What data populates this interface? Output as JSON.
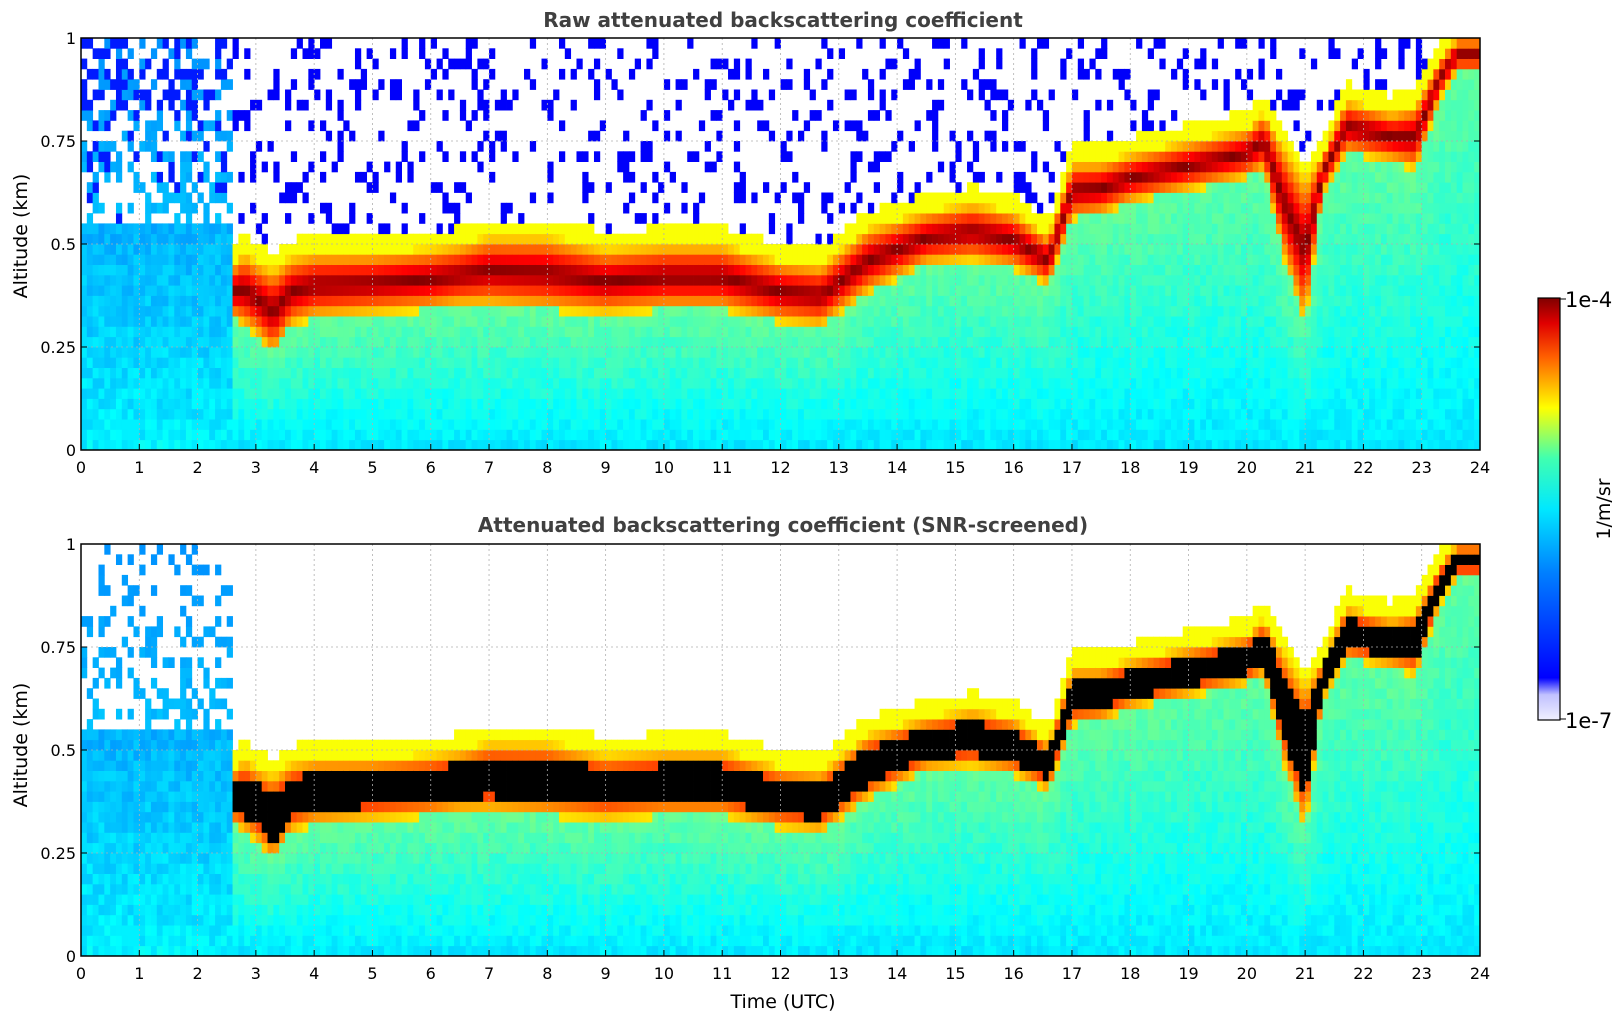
{
  "chart_data": [
    {
      "type": "heatmap",
      "title": "Raw attenuated backscattering coefficient",
      "xlabel": "",
      "ylabel": "Altitude (km)",
      "xlim": [
        0,
        24
      ],
      "ylim": [
        0,
        1
      ],
      "x_ticks": [
        "0",
        "1",
        "2",
        "3",
        "4",
        "5",
        "6",
        "7",
        "8",
        "9",
        "10",
        "11",
        "12",
        "13",
        "14",
        "15",
        "16",
        "17",
        "18",
        "19",
        "20",
        "21",
        "22",
        "23",
        "24"
      ],
      "y_ticks": [
        "0",
        "0.25",
        "0.5",
        "0.75",
        "1"
      ],
      "grid": true,
      "screened": false,
      "layer_top_km": {
        "time_utc": [
          2.6,
          2.8,
          3.0,
          3.3,
          3.6,
          4.0,
          5.0,
          6.0,
          6.5,
          7.0,
          8.0,
          9.0,
          10.0,
          11.0,
          12.0,
          12.7,
          13.5,
          14.5,
          15.3,
          16.0,
          16.6,
          17.0,
          17.5,
          18.0,
          19.0,
          20.0,
          20.3,
          20.6,
          21.0,
          21.3,
          21.7,
          22.5,
          22.9,
          23.3,
          23.6
        ],
        "altitude_km": [
          0.45,
          0.48,
          0.46,
          0.44,
          0.47,
          0.48,
          0.48,
          0.49,
          0.5,
          0.52,
          0.52,
          0.49,
          0.5,
          0.5,
          0.46,
          0.45,
          0.54,
          0.58,
          0.6,
          0.58,
          0.52,
          0.7,
          0.7,
          0.72,
          0.75,
          0.78,
          0.82,
          0.75,
          0.66,
          0.72,
          0.85,
          0.82,
          0.84,
          0.95,
          1.0
        ]
      },
      "layer_base_km": {
        "time_utc": [
          2.6,
          2.8,
          3.0,
          3.3,
          3.6,
          4.0,
          5.0,
          6.0,
          6.5,
          7.0,
          8.0,
          9.0,
          10.0,
          11.0,
          12.0,
          12.7,
          13.5,
          14.5,
          15.3,
          16.0,
          16.6,
          17.0,
          17.5,
          18.0,
          19.0,
          20.0,
          20.3,
          20.6,
          21.0,
          21.3,
          21.7,
          22.5,
          22.9,
          23.3,
          23.6
        ],
        "altitude_km": [
          0.32,
          0.3,
          0.28,
          0.23,
          0.3,
          0.32,
          0.33,
          0.34,
          0.35,
          0.35,
          0.34,
          0.33,
          0.34,
          0.34,
          0.31,
          0.3,
          0.38,
          0.45,
          0.46,
          0.44,
          0.4,
          0.56,
          0.57,
          0.6,
          0.63,
          0.66,
          0.68,
          0.48,
          0.3,
          0.62,
          0.72,
          0.7,
          0.68,
          0.85,
          0.92
        ]
      }
    },
    {
      "type": "heatmap",
      "title": "Attenuated backscattering coefficient (SNR-screened)",
      "xlabel": "Time (UTC)",
      "ylabel": "Altitude (km)",
      "xlim": [
        0,
        24
      ],
      "ylim": [
        0,
        1
      ],
      "x_ticks": [
        "0",
        "1",
        "2",
        "3",
        "4",
        "5",
        "6",
        "7",
        "8",
        "9",
        "10",
        "11",
        "12",
        "13",
        "14",
        "15",
        "16",
        "17",
        "18",
        "19",
        "20",
        "21",
        "22",
        "23",
        "24"
      ],
      "y_ticks": [
        "0",
        "0.25",
        "0.5",
        "0.75",
        "1"
      ],
      "grid": true,
      "screened": true,
      "layer_top_km": {
        "time_utc": [
          2.6,
          2.8,
          3.0,
          3.3,
          3.6,
          4.0,
          5.0,
          6.0,
          6.5,
          7.0,
          8.0,
          9.0,
          10.0,
          11.0,
          12.0,
          12.7,
          13.5,
          14.5,
          15.3,
          16.0,
          16.6,
          17.0,
          17.5,
          18.0,
          19.0,
          20.0,
          20.3,
          20.6,
          21.0,
          21.3,
          21.7,
          22.5,
          22.9,
          23.3,
          23.6
        ],
        "altitude_km": [
          0.45,
          0.48,
          0.46,
          0.44,
          0.47,
          0.48,
          0.48,
          0.49,
          0.5,
          0.52,
          0.52,
          0.49,
          0.5,
          0.5,
          0.46,
          0.45,
          0.54,
          0.58,
          0.6,
          0.58,
          0.52,
          0.7,
          0.7,
          0.72,
          0.75,
          0.78,
          0.82,
          0.75,
          0.66,
          0.72,
          0.85,
          0.82,
          0.84,
          0.95,
          1.0
        ]
      },
      "layer_base_km": {
        "time_utc": [
          2.6,
          2.8,
          3.0,
          3.3,
          3.6,
          4.0,
          5.0,
          6.0,
          6.5,
          7.0,
          8.0,
          9.0,
          10.0,
          11.0,
          12.0,
          12.7,
          13.5,
          14.5,
          15.3,
          16.0,
          16.6,
          17.0,
          17.5,
          18.0,
          19.0,
          20.0,
          20.3,
          20.6,
          21.0,
          21.3,
          21.7,
          22.5,
          22.9,
          23.3,
          23.6
        ],
        "altitude_km": [
          0.32,
          0.3,
          0.28,
          0.23,
          0.3,
          0.32,
          0.33,
          0.34,
          0.35,
          0.35,
          0.34,
          0.33,
          0.34,
          0.34,
          0.31,
          0.3,
          0.38,
          0.45,
          0.46,
          0.44,
          0.4,
          0.56,
          0.57,
          0.6,
          0.63,
          0.66,
          0.68,
          0.48,
          0.3,
          0.62,
          0.72,
          0.7,
          0.68,
          0.85,
          0.92
        ]
      }
    }
  ],
  "colorbar": {
    "max_label": "1e-4",
    "min_label": "1e-7",
    "unit_label": "1/m/sr",
    "colormap": "jet",
    "scale": "log",
    "range": [
      1e-07,
      0.0001
    ]
  },
  "colors": {
    "title": "#404040",
    "axis": "#000000",
    "grid": "#b0b0b0",
    "background": "#ffffff",
    "saturated": "#000000"
  }
}
